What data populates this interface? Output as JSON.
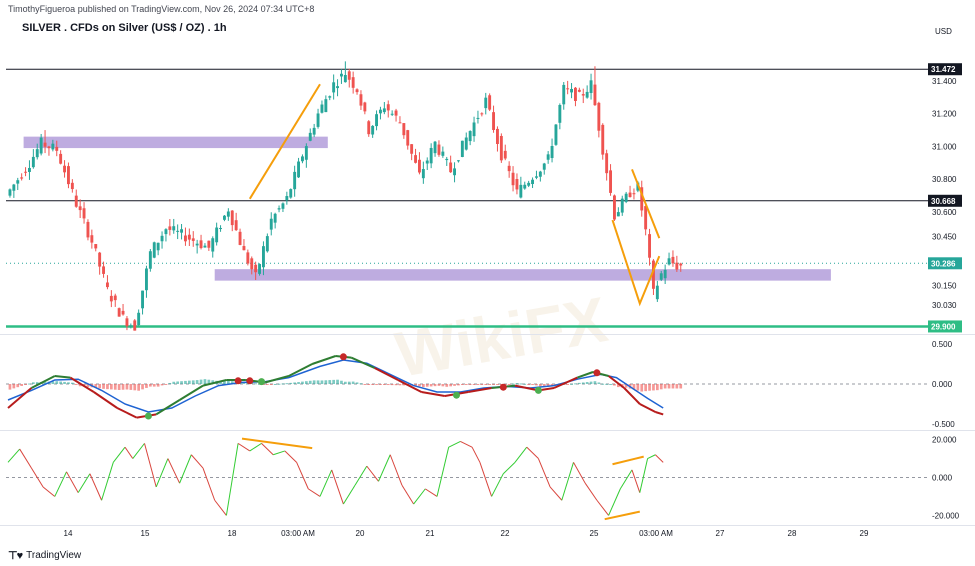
{
  "header": {
    "publisher": "TimothyFigueroa published on TradingView.com, Nov 26, 2024 07:34 UTC+8",
    "title": "SILVER . CFDs on Silver (US$ / OZ) . 1h",
    "currency": "USD"
  },
  "footer": {
    "logo": "⊤♥",
    "brand": "TradingView"
  },
  "watermark": "WikiFX",
  "colors": {
    "bull": "#26a69a",
    "bear": "#ef5350",
    "band": "#b39ddb",
    "orange": "#f59e0b",
    "support": "#2ebd85",
    "hline": "#131722",
    "macd_fast": "#2e7d32",
    "macd_slow": "#1e63d2",
    "macd_red": "#b71c1c",
    "osc_green": "#33cc33",
    "osc_red": "#d9463e",
    "price_tag": "#26a69a"
  },
  "chart_data": [
    {
      "type": "candlestick",
      "title": "SILVER . CFDs on Silver (US$ / OZ) . 1h",
      "ylabel": "USD",
      "ylim": [
        29.86,
        31.62
      ],
      "x_ticks": [
        "14",
        "15",
        "18",
        "03:00 AM",
        "20",
        "21",
        "22",
        "25",
        "03:00 AM",
        "27",
        "28",
        "29"
      ],
      "y_ticks": [
        "31.400",
        "31.200",
        "31.000",
        "30.800",
        "30.600",
        "30.450",
        "30.150",
        "30.030"
      ],
      "price_path": [
        [
          0,
          30.7
        ],
        [
          6,
          30.9
        ],
        [
          9,
          31.02
        ],
        [
          13,
          30.98
        ],
        [
          18,
          30.65
        ],
        [
          22,
          30.42
        ],
        [
          26,
          30.12
        ],
        [
          30,
          29.95
        ],
        [
          33,
          29.9
        ],
        [
          37,
          30.35
        ],
        [
          41,
          30.5
        ],
        [
          46,
          30.45
        ],
        [
          52,
          30.38
        ],
        [
          57,
          30.62
        ],
        [
          61,
          30.35
        ],
        [
          64,
          30.2
        ],
        [
          68,
          30.55
        ],
        [
          72,
          30.68
        ],
        [
          76,
          30.95
        ],
        [
          80,
          31.2
        ],
        [
          84,
          31.38
        ],
        [
          87,
          31.45
        ],
        [
          90,
          31.35
        ],
        [
          93,
          31.1
        ],
        [
          97,
          31.25
        ],
        [
          101,
          31.15
        ],
        [
          106,
          30.82
        ],
        [
          110,
          31.02
        ],
        [
          114,
          30.85
        ],
        [
          118,
          31.05
        ],
        [
          123,
          31.28
        ],
        [
          127,
          30.95
        ],
        [
          131,
          30.72
        ],
        [
          135,
          30.82
        ],
        [
          139,
          30.92
        ],
        [
          143,
          31.35
        ],
        [
          147,
          31.3
        ],
        [
          150,
          31.38
        ],
        [
          152,
          31.12
        ],
        [
          156,
          30.58
        ],
        [
          160,
          30.72
        ],
        [
          162,
          30.75
        ],
        [
          164,
          30.48
        ],
        [
          166,
          30.1
        ],
        [
          168,
          30.22
        ],
        [
          170,
          30.3
        ],
        [
          172,
          30.27
        ]
      ],
      "price_spikes": [
        [
          9,
          31.1
        ],
        [
          86,
          31.52
        ],
        [
          150,
          31.49
        ]
      ],
      "horizontal_lines": [
        {
          "label": "31.472",
          "value": 31.472,
          "kind": "resistance"
        },
        {
          "label": "30.668",
          "value": 30.668,
          "kind": "support"
        },
        {
          "label": "29.900",
          "value": 29.9,
          "kind": "support-green"
        }
      ],
      "zones": [
        {
          "from_bar": 4,
          "to_bar": 82,
          "low": 30.99,
          "high": 31.06
        },
        {
          "from_bar": 53,
          "to_bar": 211,
          "low": 30.18,
          "high": 30.25
        }
      ],
      "current_price": {
        "label": "30.286",
        "value": 30.286
      },
      "trendlines": [
        {
          "points": [
            [
              62,
              30.68
            ],
            [
              80,
              31.38
            ]
          ]
        },
        {
          "points": [
            [
              155,
              30.55
            ],
            [
              162,
              30.04
            ],
            [
              167,
              30.33
            ]
          ]
        },
        {
          "points": [
            [
              160,
              30.86
            ],
            [
              167,
              30.44
            ]
          ]
        }
      ]
    },
    {
      "type": "line",
      "name": "MACD panel",
      "ylim": [
        -0.55,
        0.6
      ],
      "y_ticks": [
        "0.500",
        "0.000",
        "-0.500"
      ],
      "fast": [
        [
          0,
          -0.3
        ],
        [
          6,
          -0.05
        ],
        [
          12,
          0.1
        ],
        [
          16,
          0.08
        ],
        [
          22,
          -0.1
        ],
        [
          28,
          -0.3
        ],
        [
          33,
          -0.42
        ],
        [
          38,
          -0.38
        ],
        [
          44,
          -0.2
        ],
        [
          50,
          -0.02
        ],
        [
          56,
          0.05
        ],
        [
          61,
          0.05
        ],
        [
          66,
          0.02
        ],
        [
          72,
          0.1
        ],
        [
          78,
          0.25
        ],
        [
          84,
          0.35
        ],
        [
          88,
          0.33
        ],
        [
          94,
          0.2
        ],
        [
          100,
          0.05
        ],
        [
          106,
          -0.1
        ],
        [
          112,
          -0.15
        ],
        [
          118,
          -0.1
        ],
        [
          124,
          -0.05
        ],
        [
          130,
          -0.02
        ],
        [
          136,
          -0.08
        ],
        [
          140,
          -0.05
        ],
        [
          146,
          0.08
        ],
        [
          150,
          0.15
        ],
        [
          154,
          0.1
        ],
        [
          158,
          -0.05
        ],
        [
          162,
          -0.25
        ],
        [
          166,
          -0.35
        ],
        [
          168,
          -0.38
        ]
      ],
      "slow": [
        [
          0,
          -0.2
        ],
        [
          6,
          -0.08
        ],
        [
          12,
          0.05
        ],
        [
          18,
          0.06
        ],
        [
          24,
          -0.08
        ],
        [
          30,
          -0.25
        ],
        [
          36,
          -0.35
        ],
        [
          42,
          -0.3
        ],
        [
          48,
          -0.15
        ],
        [
          54,
          -0.02
        ],
        [
          60,
          0.02
        ],
        [
          66,
          0.03
        ],
        [
          72,
          0.08
        ],
        [
          80,
          0.22
        ],
        [
          86,
          0.3
        ],
        [
          92,
          0.26
        ],
        [
          98,
          0.12
        ],
        [
          104,
          -0.02
        ],
        [
          110,
          -0.1
        ],
        [
          116,
          -0.1
        ],
        [
          122,
          -0.05
        ],
        [
          128,
          -0.03
        ],
        [
          134,
          -0.05
        ],
        [
          140,
          -0.02
        ],
        [
          146,
          0.06
        ],
        [
          152,
          0.12
        ],
        [
          156,
          0.08
        ],
        [
          160,
          -0.05
        ],
        [
          164,
          -0.18
        ],
        [
          168,
          -0.3
        ]
      ],
      "cross_dots": [
        {
          "bar": 36,
          "value": -0.4,
          "color": "#4caf50"
        },
        {
          "bar": 59,
          "value": 0.04,
          "color": "#c62828"
        },
        {
          "bar": 62,
          "value": 0.04,
          "color": "#c62828"
        },
        {
          "bar": 65,
          "value": 0.03,
          "color": "#4caf50"
        },
        {
          "bar": 86,
          "value": 0.34,
          "color": "#c62828"
        },
        {
          "bar": 115,
          "value": -0.14,
          "color": "#4caf50"
        },
        {
          "bar": 127,
          "value": -0.04,
          "color": "#c62828"
        },
        {
          "bar": 136,
          "value": -0.08,
          "color": "#4caf50"
        },
        {
          "bar": 151,
          "value": 0.14,
          "color": "#c62828"
        }
      ]
    },
    {
      "type": "line",
      "name": "Oscillator panel",
      "ylim": [
        -24,
        24
      ],
      "y_ticks": [
        "20.000",
        "0.000",
        "-20.000"
      ],
      "values": [
        [
          0,
          8
        ],
        [
          3,
          15
        ],
        [
          6,
          5
        ],
        [
          9,
          -5
        ],
        [
          12,
          -10
        ],
        [
          15,
          3
        ],
        [
          18,
          -8
        ],
        [
          21,
          2
        ],
        [
          24,
          -12
        ],
        [
          27,
          8
        ],
        [
          30,
          16
        ],
        [
          32,
          10
        ],
        [
          35,
          18
        ],
        [
          38,
          -5
        ],
        [
          41,
          10
        ],
        [
          44,
          -3
        ],
        [
          47,
          12
        ],
        [
          50,
          5
        ],
        [
          53,
          -12
        ],
        [
          56,
          -20
        ],
        [
          59,
          18
        ],
        [
          62,
          14
        ],
        [
          65,
          18
        ],
        [
          68,
          12
        ],
        [
          71,
          14
        ],
        [
          74,
          8
        ],
        [
          77,
          -6
        ],
        [
          80,
          -10
        ],
        [
          83,
          4
        ],
        [
          86,
          -14
        ],
        [
          89,
          -4
        ],
        [
          92,
          6
        ],
        [
          95,
          -2
        ],
        [
          98,
          12
        ],
        [
          101,
          -4
        ],
        [
          104,
          -14
        ],
        [
          107,
          -6
        ],
        [
          110,
          -10
        ],
        [
          113,
          16
        ],
        [
          116,
          19
        ],
        [
          119,
          16
        ],
        [
          121,
          8
        ],
        [
          124,
          -10
        ],
        [
          127,
          2
        ],
        [
          130,
          8
        ],
        [
          133,
          16
        ],
        [
          136,
          10
        ],
        [
          139,
          -5
        ],
        [
          142,
          -12
        ],
        [
          145,
          8
        ],
        [
          148,
          -3
        ],
        [
          151,
          -12
        ],
        [
          154,
          -20
        ],
        [
          157,
          -6
        ],
        [
          160,
          4
        ],
        [
          162,
          -8
        ],
        [
          164,
          10
        ],
        [
          166,
          12
        ],
        [
          168,
          8
        ]
      ],
      "divergence_lines": [
        {
          "points": [
            [
              60,
              20.5
            ],
            [
              78,
              15.5
            ]
          ]
        },
        {
          "points": [
            [
              153,
              -22
            ],
            [
              162,
              -18
            ]
          ]
        },
        {
          "points": [
            [
              155,
              7
            ],
            [
              163,
              11
            ]
          ]
        }
      ]
    }
  ]
}
